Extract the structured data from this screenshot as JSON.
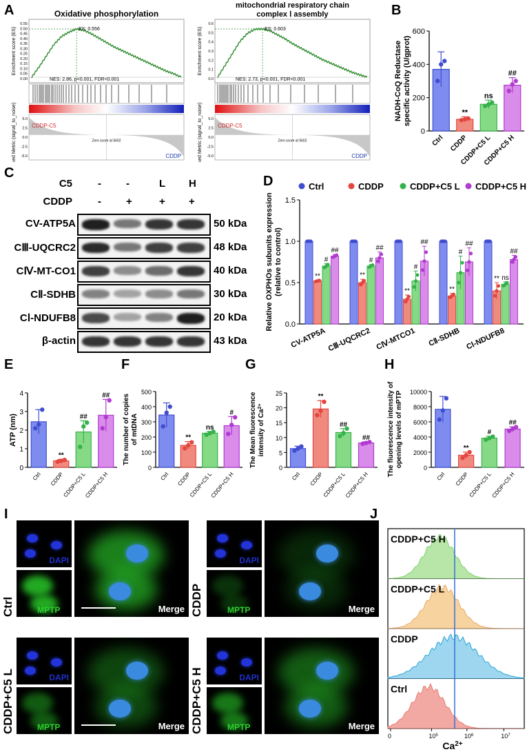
{
  "panel_labels": [
    "A",
    "B",
    "C",
    "D",
    "E",
    "F",
    "G",
    "H",
    "I",
    "J"
  ],
  "gsea": [
    {
      "title": "Oxidative phosphorylation",
      "es_label": "ES: 0.556",
      "stats": "NES: 2.86, p<0.001, FDR<0.001",
      "ylabel_top": "Enrichment score (ES)",
      "ylabel_bottom": "Ranked Metric (signal_to_noise)",
      "yticks_top": [
        "0.55",
        "0.50",
        "0.45",
        "0.40",
        "0.35",
        "0.30",
        "0.25",
        "0.20",
        "0.15",
        "0.10",
        "0.05",
        "0.00"
      ],
      "yticks_bottom": [
        "5.0",
        "2.5",
        "0.0",
        "-2.5",
        "-5.0"
      ],
      "pos_label": "CDDP-C5",
      "neg_label": "CDDP",
      "zero_label": "Zero score at 5602",
      "es_curve": [
        0,
        0.12,
        0.25,
        0.38,
        0.47,
        0.52,
        0.556,
        0.54,
        0.5,
        0.45,
        0.4,
        0.35,
        0.31,
        0.27,
        0.23,
        0.19,
        0.15,
        0.11,
        0.07,
        0.04,
        0.0
      ]
    },
    {
      "title": "mitochondrial respiratory chain complex I assembly",
      "title_line1": "mitochondrial respiratory chain",
      "title_line2": "complex Ⅰ assembly",
      "es_label": "ES: 0.603",
      "stats": "NES: 2.73, p<0.001, FDR<0.001",
      "ylabel_top": "Enrichment score (ES)",
      "ylabel_bottom": "Ranked Metric (signal_to_noise)",
      "yticks_top": [
        "0.6",
        "0.5",
        "0.4",
        "0.3",
        "0.2",
        "0.1",
        "0.0"
      ],
      "yticks_bottom": [
        "5.0",
        "2.5",
        "0.0",
        "-2.5",
        "-5.0"
      ],
      "pos_label": "CDDP-C5",
      "neg_label": "CDDP",
      "zero_label": "Zero score at 5602",
      "es_curve": [
        0,
        0.15,
        0.3,
        0.45,
        0.55,
        0.6,
        0.603,
        0.58,
        0.53,
        0.48,
        0.42,
        0.37,
        0.32,
        0.27,
        0.22,
        0.18,
        0.14,
        0.1,
        0.06,
        0.03,
        0.0
      ]
    }
  ],
  "chart_data": [
    {
      "panel": "B",
      "type": "bar",
      "categories": [
        "Ctrl",
        "CDDP",
        "CDDP+C5 L",
        "CDDP+C5 H"
      ],
      "values": [
        370,
        70,
        160,
        275
      ],
      "errors": [
        105,
        15,
        25,
        45
      ],
      "points": [
        [
          300,
          400,
          420
        ],
        [
          65,
          70,
          75
        ],
        [
          150,
          160,
          170
        ],
        [
          240,
          280,
          300
        ]
      ],
      "sig": [
        "",
        "**",
        "ns",
        "##"
      ],
      "ylabel": "NADH-CoQ Reductase specific activity (U/gprot)",
      "ylabel_line1": "NADH-CoQ Reductase",
      "ylabel_line2": "specific activity (U/gprot)",
      "ylim": [
        0,
        600
      ],
      "yticks": [
        "0",
        "200",
        "400",
        "600"
      ]
    },
    {
      "panel": "D",
      "type": "bar",
      "categories": [
        "CV-ATP5A",
        "CⅢ-UQCRC2",
        "CⅣ-MTCO1",
        "CⅡ-SDHB",
        "CⅠ-NDUFB8"
      ],
      "series": [
        {
          "name": "Ctrl",
          "values": [
            1.0,
            1.0,
            1.0,
            1.0,
            1.0
          ],
          "errors": [
            0,
            0,
            0,
            0,
            0
          ]
        },
        {
          "name": "CDDP",
          "values": [
            0.52,
            0.5,
            0.3,
            0.34,
            0.4
          ],
          "errors": [
            0.01,
            0.04,
            0.05,
            0.03,
            0.1
          ]
        },
        {
          "name": "CDDP+C5 L",
          "values": [
            0.7,
            0.7,
            0.52,
            0.62,
            0.48
          ],
          "errors": [
            0.03,
            0.02,
            0.12,
            0.2,
            0.03
          ]
        },
        {
          "name": "CDDP+C5 H",
          "values": [
            0.82,
            0.8,
            0.76,
            0.75,
            0.78
          ],
          "errors": [
            0.02,
            0.07,
            0.18,
            0.17,
            0.05
          ]
        }
      ],
      "sig": [
        [
          "",
          "**",
          "#",
          "##"
        ],
        [
          "",
          "**",
          "#",
          "##"
        ],
        [
          "",
          "**",
          "#",
          "##"
        ],
        [
          "",
          "**",
          "#",
          "##"
        ],
        [
          "",
          "**",
          "ns",
          "##"
        ]
      ],
      "ylabel": "Relative OXPHOs subunits expression (relative to control)",
      "ylabel_line1": "Relative OXPHOs subunits expression",
      "ylabel_line2": "(relative to control)",
      "ylim": [
        0,
        1.5
      ],
      "yticks": [
        "0.0",
        "0.5",
        "1.0",
        "1.5"
      ],
      "legend": "top"
    },
    {
      "panel": "E",
      "type": "bar",
      "categories": [
        "Ctrl",
        "CDDP",
        "CDDP+C5 L",
        "CDDP+C5 H"
      ],
      "values": [
        2.45,
        0.35,
        1.9,
        2.8
      ],
      "errors": [
        0.65,
        0.08,
        0.6,
        0.85
      ],
      "points": [
        [
          2.1,
          2.3,
          3.1
        ],
        [
          0.3,
          0.35,
          0.4
        ],
        [
          1.1,
          2.2,
          2.4
        ],
        [
          2.1,
          2.7,
          3.6
        ]
      ],
      "sig": [
        "",
        "**",
        "##",
        "##"
      ],
      "ylabel": "ATP (nm)",
      "ylim": [
        0,
        4
      ],
      "yticks": [
        "0",
        "1",
        "2",
        "3",
        "4"
      ]
    },
    {
      "panel": "F",
      "type": "bar",
      "categories": [
        "Ctrl",
        "CDDP",
        "CDDP+C5 L",
        "CDDP+C5 H"
      ],
      "values": [
        345,
        145,
        225,
        275
      ],
      "errors": [
        80,
        25,
        12,
        60
      ],
      "points": [
        [
          270,
          360,
          400
        ],
        [
          125,
          145,
          165
        ],
        [
          215,
          225,
          235
        ],
        [
          220,
          280,
          330
        ]
      ],
      "sig": [
        "",
        "**",
        "ns",
        "#"
      ],
      "ylabel": "The number of copies of mtDNA",
      "ylabel_line1": "The number of copies",
      "ylabel_line2": "of mtDNA",
      "ylim": [
        0,
        500
      ],
      "yticks": [
        "0",
        "100",
        "200",
        "300",
        "400",
        "500"
      ]
    },
    {
      "panel": "G",
      "type": "bar",
      "categories": [
        "Ctrl",
        "CDDP",
        "CDDP+C5 L",
        "CDDP+C5 H"
      ],
      "values": [
        6.3,
        19.6,
        11.7,
        8.2
      ],
      "errors": [
        0.8,
        2.8,
        1.3,
        0.4
      ],
      "points": [
        [
          5.6,
          6.3,
          7.0
        ],
        [
          17.5,
          19.0,
          22.0
        ],
        [
          10.5,
          11.5,
          13.0
        ],
        [
          7.9,
          8.2,
          8.5
        ]
      ],
      "sig": [
        "",
        "**",
        "##",
        "##"
      ],
      "ylabel": "The Mean fluorescence intensity of Ca2+",
      "ylabel_line1": "The Mean fluorescence",
      "ylabel_line2": "intensity of Ca",
      "ylim": [
        0,
        25
      ],
      "yticks": [
        "0",
        "5",
        "10",
        "15",
        "20",
        "25"
      ]
    },
    {
      "panel": "H",
      "type": "bar",
      "categories": [
        "Ctrl",
        "CDDP",
        "CDDP+C5 L",
        "CDDP+C5 H"
      ],
      "values": [
        7650,
        1600,
        3850,
        5050
      ],
      "errors": [
        1700,
        400,
        250,
        300
      ],
      "points": [
        [
          6300,
          7500,
          9100
        ],
        [
          1250,
          1600,
          2000
        ],
        [
          3650,
          3850,
          4050
        ],
        [
          4800,
          5050,
          5300
        ]
      ],
      "sig": [
        "",
        "**",
        "#",
        "##"
      ],
      "ylabel": "The fluorescence intensity of opening levels of mPTP",
      "ylabel_line1": "The fluorescence intensity of",
      "ylabel_line2": "opening levels of mPTP",
      "ylim": [
        0,
        10000
      ],
      "yticks": [
        "0",
        "2000",
        "4000",
        "6000",
        "8000",
        "10000"
      ]
    }
  ],
  "western_blot": {
    "header_rows": [
      {
        "label": "C5",
        "values": [
          "-",
          "-",
          "L",
          "H"
        ]
      },
      {
        "label": "CDDP",
        "values": [
          "-",
          "+",
          "+",
          "+"
        ]
      }
    ],
    "rows": [
      {
        "name": "CV-ATP5A",
        "kda": "50 kDa",
        "intensity": [
          0.95,
          0.55,
          0.85,
          0.85
        ]
      },
      {
        "name": "CⅢ-UQCRC2",
        "kda": "48 kDa",
        "intensity": [
          0.9,
          0.55,
          0.8,
          0.8
        ]
      },
      {
        "name": "CⅣ-MT-CO1",
        "kda": "40 kDa",
        "intensity": [
          0.8,
          0.45,
          0.6,
          0.85
        ]
      },
      {
        "name": "CⅡ-SDHB",
        "kda": "30 kDa",
        "intensity": [
          0.5,
          0.35,
          0.45,
          0.55
        ]
      },
      {
        "name": "CⅠ-NDUFB8",
        "kda": "20 kDa",
        "intensity": [
          0.75,
          0.35,
          0.5,
          0.95
        ]
      },
      {
        "name": "β-actin",
        "kda": "43 kDa",
        "intensity": [
          0.85,
          0.85,
          0.85,
          0.85
        ]
      }
    ]
  },
  "microscopy": {
    "groups": [
      "Ctrl",
      "CDDP",
      "CDDP+C5 L",
      "CDDP+C5 H"
    ],
    "channel_labels": {
      "dapi": "DAPI",
      "mptp": "MPTP",
      "merge": "Merge"
    }
  },
  "flow": {
    "rows": [
      "CDDP+C5 H",
      "CDDP+C5 L",
      "CDDP",
      "Ctrl"
    ],
    "xticks": [
      "0",
      "10",
      "10",
      "10"
    ],
    "xtick_sup": [
      "",
      "5",
      "6",
      "7"
    ],
    "xlabel": "Ca",
    "xlabel_sup": "2+",
    "colors": [
      "#b8e6a8",
      "#f7d3a0",
      "#9fd6ef",
      "#f3a9a3"
    ],
    "line_colors": [
      "#7fcf6e",
      "#e9a96a",
      "#2aa6d8",
      "#e77c74"
    ]
  },
  "colors": {
    "ctrl": "#3f4dcf",
    "cddp": "#e3463f",
    "c5l": "#35b24a",
    "c5h": "#b13ad0",
    "ctrl_fill": "#7e8cf0",
    "cddp_fill": "#f08a7f",
    "c5l_fill": "#86da86",
    "c5h_fill": "#d98ce9"
  }
}
